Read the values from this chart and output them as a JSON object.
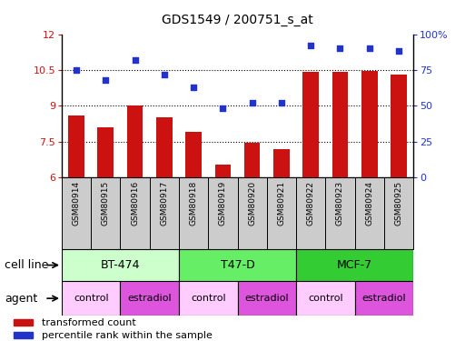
{
  "title": "GDS1549 / 200751_s_at",
  "samples": [
    "GSM80914",
    "GSM80915",
    "GSM80916",
    "GSM80917",
    "GSM80918",
    "GSM80919",
    "GSM80920",
    "GSM80921",
    "GSM80922",
    "GSM80923",
    "GSM80924",
    "GSM80925"
  ],
  "bar_values": [
    8.6,
    8.1,
    9.0,
    8.5,
    7.9,
    6.55,
    7.45,
    7.2,
    10.4,
    10.4,
    10.45,
    10.3
  ],
  "dot_values": [
    75,
    68,
    82,
    72,
    63,
    48,
    52,
    52,
    92,
    90,
    90,
    88
  ],
  "ylim_left": [
    6,
    12
  ],
  "ylim_right": [
    0,
    100
  ],
  "yticks_left": [
    6,
    7.5,
    9,
    10.5,
    12
  ],
  "yticks_right": [
    0,
    25,
    50,
    75,
    100
  ],
  "bar_color": "#cc1111",
  "dot_color": "#2233cc",
  "cell_lines": [
    {
      "label": "BT-474",
      "start": 0,
      "end": 4,
      "color": "#ccffcc"
    },
    {
      "label": "T47-D",
      "start": 4,
      "end": 8,
      "color": "#66ee66"
    },
    {
      "label": "MCF-7",
      "start": 8,
      "end": 12,
      "color": "#33cc33"
    }
  ],
  "agents": [
    {
      "label": "control",
      "start": 0,
      "end": 2,
      "color": "#ffccff"
    },
    {
      "label": "estradiol",
      "start": 2,
      "end": 4,
      "color": "#dd55dd"
    },
    {
      "label": "control",
      "start": 4,
      "end": 6,
      "color": "#ffccff"
    },
    {
      "label": "estradiol",
      "start": 6,
      "end": 8,
      "color": "#dd55dd"
    },
    {
      "label": "control",
      "start": 8,
      "end": 10,
      "color": "#ffccff"
    },
    {
      "label": "estradiol",
      "start": 10,
      "end": 12,
      "color": "#dd55dd"
    }
  ],
  "legend_bar_label": "transformed count",
  "legend_dot_label": "percentile rank within the sample",
  "cell_line_label": "cell line",
  "agent_label": "agent",
  "bg_color": "#ffffff",
  "plot_bg_color": "#ffffff",
  "ticklabel_bg": "#cccccc",
  "grid_color": "#000000"
}
